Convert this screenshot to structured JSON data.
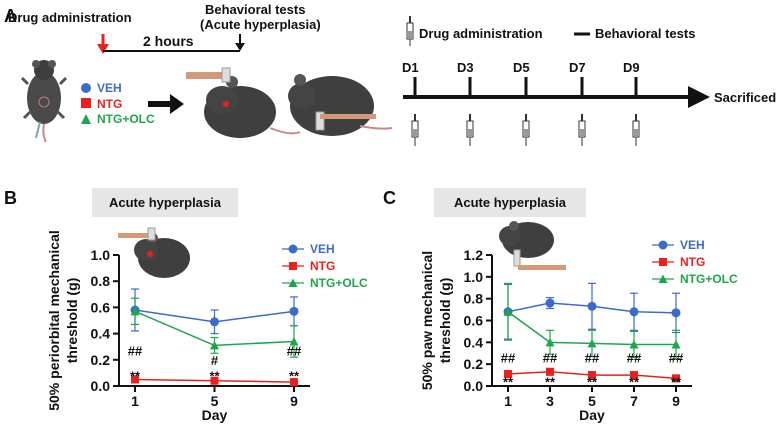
{
  "panel_a": {
    "letter": "A",
    "drug_admin_label": "Drug administration",
    "behavioral_label_line1": "Behavioral tests",
    "behavioral_label_line2": "(Acute hyperplasia)",
    "interval_label": "2 hours",
    "groups": [
      {
        "name": "VEH",
        "color": "#3d6bc9",
        "marker": "circle"
      },
      {
        "name": "NTG",
        "color": "#e8211f",
        "marker": "square"
      },
      {
        "name": "NTG+OLC",
        "color": "#1fa64a",
        "marker": "triangle"
      }
    ],
    "timeline_legend_drug": "Drug administration",
    "timeline_legend_behavior": "Behavioral tests",
    "timeline_days": [
      "D1",
      "D3",
      "D5",
      "D7",
      "D9"
    ],
    "timeline_end": "Sacrificed"
  },
  "chart_data": [
    {
      "panel": "B",
      "type": "line",
      "banner": "Acute hyperplasia",
      "xlabel": "Day",
      "ylabel_line1": "50% periorbital mechanical",
      "ylabel_line2": "threshold (g)",
      "x": [
        1,
        5,
        9
      ],
      "x_tick_labels": [
        "1",
        "5",
        "9"
      ],
      "ylim": [
        0,
        1.0
      ],
      "y_ticks": [
        "0.0",
        "0.2",
        "0.4",
        "0.6",
        "0.8",
        "1.0"
      ],
      "series": [
        {
          "name": "VEH",
          "color": "#3d6bc9",
          "marker": "circle",
          "values": [
            0.58,
            0.49,
            0.57
          ],
          "err": [
            0.16,
            0.09,
            0.11
          ]
        },
        {
          "name": "NTG",
          "color": "#e8211f",
          "marker": "square",
          "values": [
            0.05,
            0.04,
            0.03
          ],
          "err": [
            0.02,
            0.02,
            0.02
          ]
        },
        {
          "name": "NTG+OLC",
          "color": "#1fa64a",
          "marker": "triangle",
          "values": [
            0.57,
            0.31,
            0.34
          ],
          "err": [
            0.1,
            0.06,
            0.12
          ]
        }
      ],
      "annotations": [
        {
          "x": 1,
          "y": 0.27,
          "text": "##"
        },
        {
          "x": 5,
          "y": 0.2,
          "text": "#"
        },
        {
          "x": 9,
          "y": 0.27,
          "text": "##"
        },
        {
          "x": 1,
          "y": 0.08,
          "text": "**"
        },
        {
          "x": 5,
          "y": 0.08,
          "text": "**"
        },
        {
          "x": 9,
          "y": 0.08,
          "text": "**"
        }
      ]
    },
    {
      "panel": "C",
      "type": "line",
      "banner": "Acute hyperplasia",
      "xlabel": "Day",
      "ylabel_line1": "50% paw mechanical",
      "ylabel_line2": "threshold (g)",
      "x": [
        1,
        3,
        5,
        7,
        9
      ],
      "x_tick_labels": [
        "1",
        "3",
        "5",
        "7",
        "9"
      ],
      "ylim": [
        0,
        1.2
      ],
      "y_ticks": [
        "0.0",
        "0.2",
        "0.4",
        "0.6",
        "0.8",
        "1.0",
        "1.2"
      ],
      "series": [
        {
          "name": "VEH",
          "color": "#3d6bc9",
          "marker": "circle",
          "values": [
            0.68,
            0.76,
            0.73,
            0.68,
            0.67
          ],
          "err": [
            0.25,
            0.05,
            0.21,
            0.17,
            0.18
          ]
        },
        {
          "name": "NTG",
          "color": "#e8211f",
          "marker": "square",
          "values": [
            0.11,
            0.13,
            0.1,
            0.1,
            0.07
          ],
          "err": [
            0.03,
            0.03,
            0.03,
            0.03,
            0.02
          ]
        },
        {
          "name": "NTG+OLC",
          "color": "#1fa64a",
          "marker": "triangle",
          "values": [
            0.68,
            0.4,
            0.39,
            0.38,
            0.38
          ],
          "err": [
            0.26,
            0.11,
            0.12,
            0.12,
            0.13
          ]
        }
      ],
      "annotations": [
        {
          "x": 1,
          "y": 0.26,
          "text": "##"
        },
        {
          "x": 3,
          "y": 0.26,
          "text": "##"
        },
        {
          "x": 5,
          "y": 0.26,
          "text": "##"
        },
        {
          "x": 7,
          "y": 0.26,
          "text": "##"
        },
        {
          "x": 9,
          "y": 0.26,
          "text": "##"
        },
        {
          "x": 1,
          "y": 0.04,
          "text": "**"
        },
        {
          "x": 3,
          "y": 0.04,
          "text": "**"
        },
        {
          "x": 5,
          "y": 0.04,
          "text": "**"
        },
        {
          "x": 7,
          "y": 0.04,
          "text": "**"
        },
        {
          "x": 9,
          "y": 0.04,
          "text": "**"
        }
      ]
    }
  ]
}
